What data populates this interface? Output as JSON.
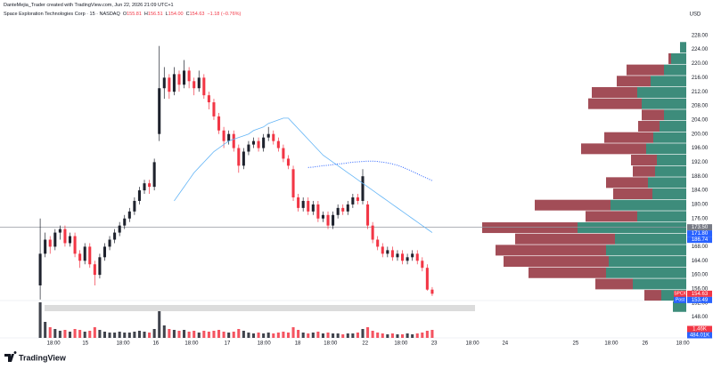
{
  "chart_data": {
    "type": "candlestick",
    "header": {
      "credit": "DanteMejia_Trader created with TradingView.com, Jun 22, 2026 21:09 UTC+1",
      "title": "Space Exploration Technologies Corp · 15 · NASDAQ",
      "legend": [
        {
          "key": "O",
          "text": "155.81"
        },
        {
          "key": "H",
          "text": "156.51"
        },
        {
          "key": "L",
          "text": "154.00"
        },
        {
          "key": "C",
          "text": "154.63"
        }
      ],
      "change": "−1.18 (−0.76%)"
    },
    "currency": "USD",
    "brand": "TradingView",
    "up_color": "#1e222d",
    "down_color": "#f23645",
    "open": [
      157,
      166,
      170,
      168,
      172,
      173,
      169,
      171,
      166,
      164,
      168,
      163,
      160,
      165,
      168,
      170,
      172,
      174,
      176,
      178,
      181,
      184,
      186,
      185,
      200,
      213,
      216,
      212,
      217,
      214,
      218,
      215,
      213,
      216,
      211,
      209,
      205,
      201,
      198,
      200,
      196,
      191,
      195,
      197,
      198,
      196,
      199,
      200,
      198,
      196,
      193,
      190,
      182,
      179,
      181,
      178,
      180,
      176,
      177,
      174,
      177,
      179,
      178,
      180,
      182,
      181,
      180,
      174,
      170,
      168,
      166,
      167,
      165,
      166,
      164,
      165,
      166,
      164,
      162,
      155.81
    ],
    "high": [
      176,
      172,
      171,
      173,
      174,
      174,
      172,
      172,
      167,
      169,
      169,
      164,
      166,
      169,
      171,
      173,
      175,
      177,
      179,
      182,
      185,
      187,
      187,
      193,
      225,
      219,
      217,
      219,
      218,
      221,
      219,
      216,
      218,
      217,
      212,
      210,
      206,
      202,
      201,
      201,
      197,
      196,
      198,
      199,
      199,
      200,
      202,
      201,
      199,
      197,
      194,
      191,
      183,
      182,
      182,
      181,
      181,
      178,
      178,
      178,
      180,
      180,
      181,
      183,
      183,
      190,
      181,
      175,
      171,
      169,
      168,
      168,
      167,
      167,
      166,
      167,
      167,
      165,
      163,
      156.51
    ],
    "low": [
      153,
      165,
      166,
      167,
      170,
      168,
      168,
      165,
      162,
      163,
      162,
      157,
      159,
      164,
      167,
      169,
      171,
      173,
      175,
      177,
      180,
      183,
      183,
      184,
      198,
      210,
      210,
      211,
      212,
      213,
      213,
      211,
      212,
      210,
      207,
      204,
      200,
      196,
      197,
      195,
      189,
      190,
      194,
      196,
      195,
      195,
      198,
      197,
      195,
      192,
      190,
      181,
      178,
      178,
      177,
      177,
      175,
      175,
      173,
      173,
      176,
      177,
      177,
      179,
      180,
      180,
      173,
      169,
      167,
      165,
      165,
      164,
      164,
      163,
      163,
      164,
      163,
      161,
      155.5,
      154
    ],
    "close": [
      166,
      170,
      168,
      172,
      173,
      169,
      171,
      166,
      164,
      168,
      163,
      160,
      165,
      168,
      170,
      172,
      174,
      176,
      178,
      181,
      184,
      186,
      185,
      192,
      213,
      216,
      212,
      217,
      214,
      218,
      215,
      213,
      216,
      211,
      209,
      205,
      201,
      198,
      200,
      196,
      191,
      195,
      197,
      198,
      196,
      199,
      200,
      198,
      196,
      193,
      191,
      182,
      179,
      181,
      178,
      180,
      176,
      177,
      174,
      177,
      179,
      178,
      180,
      182,
      181,
      188,
      174,
      170,
      168,
      166,
      167,
      165,
      166,
      164,
      165,
      166,
      164,
      162,
      155.81,
      154.63
    ],
    "volume": [
      40,
      18,
      12,
      10,
      8,
      9,
      7,
      10,
      9,
      7,
      8,
      12,
      9,
      7,
      6,
      6,
      7,
      6,
      6,
      7,
      8,
      7,
      6,
      10,
      30,
      14,
      10,
      9,
      8,
      9,
      7,
      8,
      6,
      8,
      7,
      8,
      9,
      7,
      6,
      7,
      10,
      8,
      6,
      5,
      6,
      5,
      6,
      5,
      6,
      7,
      6,
      12,
      9,
      6,
      5,
      6,
      7,
      5,
      6,
      5,
      5,
      4,
      5,
      5,
      6,
      10,
      12,
      8,
      6,
      5,
      4,
      5,
      4,
      4,
      5,
      4,
      5,
      6,
      8,
      9
    ],
    "ma": {
      "color": "#64b5f6",
      "values": [
        null,
        null,
        null,
        null,
        null,
        null,
        null,
        null,
        null,
        null,
        null,
        null,
        null,
        null,
        null,
        null,
        null,
        null,
        null,
        null,
        null,
        null,
        null,
        null,
        null,
        null,
        null,
        181,
        183,
        185,
        187,
        189,
        190.5,
        192,
        193.5,
        195,
        196,
        197,
        198,
        198.5,
        199,
        199.5,
        200,
        201,
        201.5,
        202,
        203,
        203.5,
        204,
        204.5,
        204.5,
        203,
        201.5,
        200,
        198.5,
        197,
        195.5,
        194,
        193,
        192,
        191,
        190,
        189,
        188,
        187,
        186,
        185,
        184,
        183,
        182,
        181,
        180,
        179,
        178,
        177,
        176,
        175,
        174,
        173,
        172
      ]
    },
    "vwap": {
      "color": "#2962ff",
      "values": [
        null,
        null,
        null,
        null,
        null,
        null,
        null,
        null,
        null,
        null,
        null,
        null,
        null,
        null,
        null,
        null,
        null,
        null,
        null,
        null,
        null,
        null,
        null,
        null,
        null,
        null,
        null,
        null,
        null,
        null,
        null,
        null,
        null,
        null,
        null,
        null,
        null,
        null,
        null,
        null,
        null,
        null,
        null,
        null,
        null,
        null,
        null,
        null,
        null,
        null,
        null,
        null,
        null,
        null,
        190.5,
        190.6,
        190.8,
        191,
        191.1,
        191.3,
        191.5,
        191.6,
        191.8,
        192,
        192.1,
        192.2,
        192.3,
        192.3,
        192.2,
        192,
        191.8,
        191.5,
        191.1,
        190.6,
        190,
        189.4,
        188.7,
        188,
        187.4,
        186.74
      ]
    },
    "xlim": [
      -8.1,
      130.2
    ],
    "xticks": [
      {
        "value": 2.7,
        "label": "18:00"
      },
      {
        "value": 9.1,
        "label": "15"
      },
      {
        "value": 16.7,
        "label": "18:00"
      },
      {
        "value": 23.3,
        "label": "16"
      },
      {
        "value": 30.5,
        "label": "18:00"
      },
      {
        "value": 37.7,
        "label": "17"
      },
      {
        "value": 45.1,
        "label": "18:00"
      },
      {
        "value": 51.9,
        "label": "18"
      },
      {
        "value": 58.5,
        "label": "18:00"
      },
      {
        "value": 65.5,
        "label": "22"
      },
      {
        "value": 72.7,
        "label": "18:00"
      },
      {
        "value": 79.4,
        "label": "23"
      },
      {
        "value": 87.1,
        "label": "18:00"
      },
      {
        "value": 93.7,
        "label": "24"
      },
      {
        "value": 107.9,
        "label": "25"
      },
      {
        "value": 115.1,
        "label": "18:00"
      },
      {
        "value": 121.9,
        "label": "26"
      },
      {
        "value": 129.5,
        "label": "18:00"
      }
    ],
    "ylim": [
      142.1,
      232.5
    ],
    "yticks": [
      {
        "value": 148,
        "label": "148.00"
      },
      {
        "value": 152,
        "label": "152.00"
      },
      {
        "value": 156,
        "label": "156.00"
      },
      {
        "value": 160,
        "label": "160.00"
      },
      {
        "value": 164,
        "label": "164.00"
      },
      {
        "value": 168,
        "label": "168.00"
      },
      {
        "value": 172,
        "label": "172.00"
      },
      {
        "value": 176,
        "label": "176.00"
      },
      {
        "value": 180,
        "label": "180.00"
      },
      {
        "value": 184,
        "label": "184.00"
      },
      {
        "value": 188,
        "label": "188.00"
      },
      {
        "value": 192,
        "label": "192.00"
      },
      {
        "value": 196,
        "label": "196.00"
      },
      {
        "value": 200,
        "label": "200.00"
      },
      {
        "value": 204,
        "label": "204.00"
      },
      {
        "value": 208,
        "label": "208.00"
      },
      {
        "value": 212,
        "label": "212.00"
      },
      {
        "value": 216,
        "label": "216.00"
      },
      {
        "value": 220,
        "label": "220.00"
      },
      {
        "value": 224,
        "label": "224.00"
      },
      {
        "value": 228,
        "label": "228.00"
      }
    ],
    "price_labels": [
      {
        "value": 173.5,
        "label": "173.50",
        "color": "#787b86",
        "line": true
      },
      {
        "value": 171.8,
        "label": "171.80",
        "color": "#2962ff"
      },
      {
        "value": 186.74,
        "label": "186.74",
        "color": "#2962ff"
      },
      {
        "name": "SPCX",
        "value": 154.63,
        "label": "154.63",
        "color": "#f23645"
      },
      {
        "name": "Post",
        "value": 153.49,
        "label": "153.49",
        "color": "#2962ff"
      }
    ],
    "volume_labels": [
      {
        "label": "1.46K",
        "color": "#f23645"
      },
      {
        "label": "484.01K",
        "color": "#2962ff"
      }
    ],
    "volume_profile": {
      "up_color": "#3d8c7b",
      "down_color": "#a24d57",
      "levels": [
        224.6,
        221.4,
        218.2,
        215.0,
        211.8,
        208.6,
        205.4,
        202.2,
        199.0,
        195.8,
        192.6,
        189.4,
        186.2,
        183.0,
        179.8,
        176.6,
        173.4,
        170.2,
        167.0,
        163.8,
        160.6,
        157.4,
        154.2,
        151.0
      ],
      "up": [
        7,
        17,
        25,
        40,
        55,
        50,
        25,
        30,
        37,
        45,
        33,
        35,
        43,
        38,
        85,
        55,
        122,
        80,
        90,
        87,
        90,
        60,
        28,
        15
      ],
      "down": [
        0,
        3,
        42,
        38,
        51,
        60,
        25,
        24,
        55,
        73,
        29,
        25,
        47,
        44,
        85,
        58,
        107,
        112,
        124,
        118,
        87,
        42,
        19,
        0
      ]
    }
  }
}
